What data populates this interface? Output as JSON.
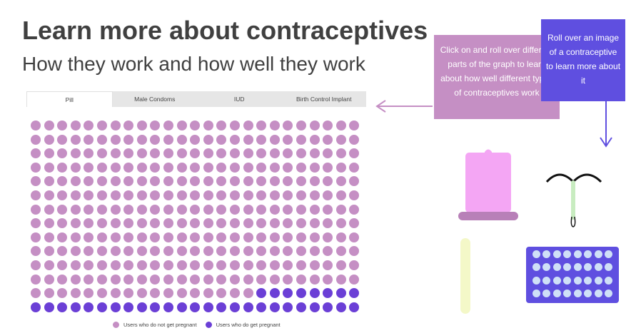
{
  "header": {
    "title": "Learn more about contraceptives",
    "subtitle": "How they work and how well they work"
  },
  "tabs": [
    {
      "label": "Pill",
      "active": true
    },
    {
      "label": "Male Condoms",
      "active": false
    },
    {
      "label": "IUD",
      "active": false
    },
    {
      "label": "Birth Control Implant",
      "active": false
    }
  ],
  "waffle": {
    "rows": 14,
    "cols": 25,
    "total": 350,
    "pregnant_count": 33,
    "not_pregnant_count": 317,
    "colors": {
      "not_pregnant": "#c58fc4",
      "pregnant": "#6b3fd6"
    }
  },
  "legend": {
    "not_pregnant_label": "Users who do not get pregnant",
    "pregnant_label": "Users who do get pregnant"
  },
  "callouts": {
    "graph_hint": "Click on and roll over different parts of the graph to learn about how well different types of contraceptives work",
    "image_hint": "Roll over an image of a contraceptive to learn more about it"
  },
  "images": {
    "condom_icon": "condom-icon",
    "iud_icon": "iud-icon",
    "implant_icon": "implant-icon",
    "pill_pack_icon": "pill-pack-icon"
  }
}
